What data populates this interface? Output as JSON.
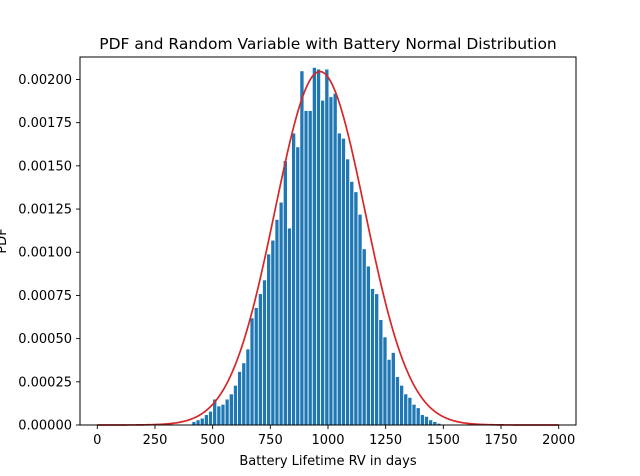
{
  "chart_data": {
    "type": "bar",
    "title": "PDF and Random Variable with Battery Normal Distribution",
    "xlabel": "Battery Lifetime RV in days",
    "ylabel": "PDF",
    "xlim": [
      -75,
      2075
    ],
    "ylim": [
      0,
      0.00213
    ],
    "x_ticks": [
      0,
      250,
      500,
      750,
      1000,
      1250,
      1500,
      1750,
      2000
    ],
    "y_ticks": [
      0.0,
      0.00025,
      0.0005,
      0.00075,
      0.001,
      0.00125,
      0.0015,
      0.00175,
      0.002
    ],
    "y_tick_labels": [
      "0.00000",
      "0.00025",
      "0.00050",
      "0.00075",
      "0.00100",
      "0.00125",
      "0.00150",
      "0.00175",
      "0.00200"
    ],
    "grid": false,
    "bar_color": "#1f77b4",
    "bar_edge_color": "#ffffff",
    "line_color": "#d62728",
    "histogram": {
      "bin_width": 18,
      "bin_start": 410,
      "values": [
        2e-05,
        3e-05,
        4e-05,
        6e-05,
        8e-05,
        0.00015,
        0.00011,
        0.00012,
        0.00015,
        0.00018,
        0.00023,
        0.00031,
        0.00036,
        0.00044,
        0.00062,
        0.00068,
        0.00076,
        0.00084,
        0.00099,
        0.00107,
        0.00119,
        0.00129,
        0.00153,
        0.00114,
        0.00169,
        0.00161,
        0.00205,
        0.00182,
        0.00182,
        0.00207,
        0.00206,
        0.00188,
        0.00206,
        0.0019,
        0.00192,
        0.00169,
        0.00166,
        0.00154,
        0.00141,
        0.00135,
        0.00122,
        0.00102,
        0.00092,
        0.00079,
        0.00076,
        0.00061,
        0.00051,
        0.00038,
        0.00042,
        0.00028,
        0.00023,
        0.00018,
        0.00016,
        0.00012,
        0.0001,
        6e-05,
        5e-05,
        3e-05,
        2e-05,
        1e-05
      ]
    },
    "pdf_curve": {
      "name": "Normal PDF",
      "mean": 965,
      "std": 195,
      "x_range": [
        0,
        2000
      ]
    }
  }
}
